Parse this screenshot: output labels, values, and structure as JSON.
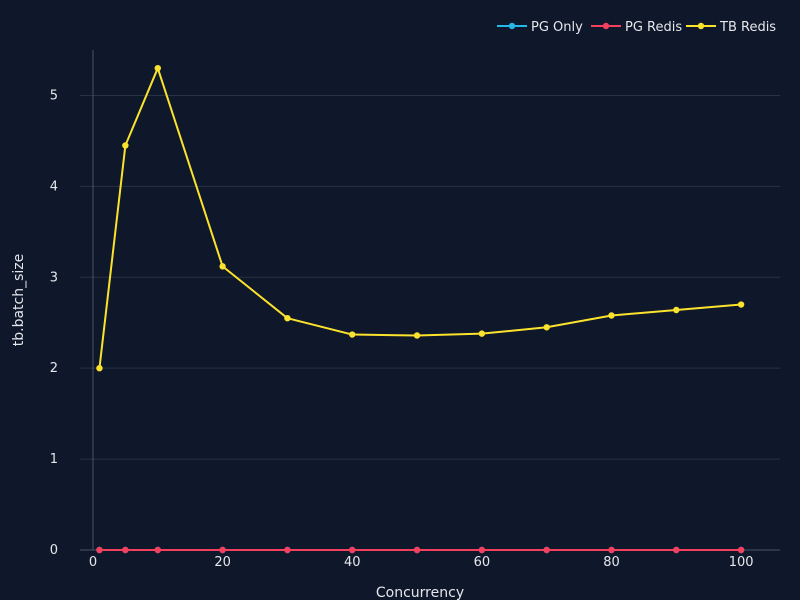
{
  "chart_data": {
    "type": "line",
    "xlabel": "Concurrency",
    "ylabel": "tb.batch_size",
    "xlim": [
      -2,
      106
    ],
    "ylim": [
      0,
      5.5
    ],
    "xticks": [
      0,
      20,
      40,
      60,
      80,
      100
    ],
    "yticks": [
      0,
      1,
      2,
      3,
      4,
      5
    ],
    "grid": true,
    "legend_position": "top-right",
    "x": [
      1,
      5,
      10,
      20,
      30,
      40,
      50,
      60,
      70,
      80,
      90,
      100
    ],
    "series": [
      {
        "name": "PG Only",
        "color": "#22b8e8",
        "values": [
          0,
          0,
          0,
          0,
          0,
          0,
          0,
          0,
          0,
          0,
          0,
          0
        ]
      },
      {
        "name": "PG Redis",
        "color": "#f43f5e",
        "values": [
          0,
          0,
          0,
          0,
          0,
          0,
          0,
          0,
          0,
          0,
          0,
          0
        ]
      },
      {
        "name": "TB Redis",
        "color": "#fbe32d",
        "values": [
          2.0,
          4.45,
          5.3,
          3.12,
          2.55,
          2.37,
          2.36,
          2.38,
          2.45,
          2.58,
          2.64,
          2.7
        ]
      }
    ]
  },
  "colors": {
    "background": "#0f172a",
    "grid": "#283244",
    "axis": "#475569",
    "text": "#e5e7eb"
  }
}
